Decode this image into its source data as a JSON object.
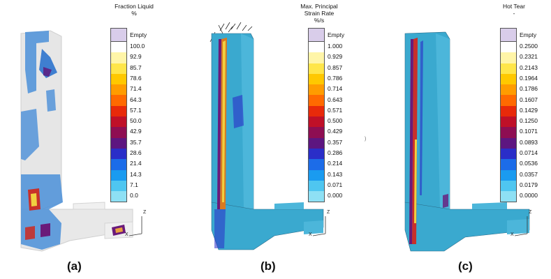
{
  "panels": [
    {
      "id": "a",
      "caption": "(a)",
      "colorbar": {
        "title": "Fraction Liquid\n%",
        "empty_label": "Empty",
        "empty_color": "#d9cdea",
        "ticks": [
          "100.0",
          "92.9",
          "85.7",
          "78.6",
          "71.4",
          "64.3",
          "57.1",
          "50.0",
          "42.9",
          "35.7",
          "28.6",
          "21.4",
          "14.3",
          "7.1",
          "0.0"
        ],
        "colors": [
          "#ffffff",
          "#fff5a8",
          "#ffe64a",
          "#ffc800",
          "#ff9c00",
          "#ff6a00",
          "#e82a0a",
          "#bf1028",
          "#8e0e52",
          "#5d1680",
          "#2a2ec8",
          "#1c6ce8",
          "#1a9bf0",
          "#4fc6f0",
          "#8ee0f4"
        ]
      },
      "axis": {
        "z": "Z",
        "x": "X"
      }
    },
    {
      "id": "b",
      "caption": "(b)",
      "colorbar": {
        "title": "Max. Principal\nStrain Rate\n%/s",
        "empty_label": "Empty",
        "empty_color": "#d9cdea",
        "ticks": [
          "1.000",
          "0.929",
          "0.857",
          "0.786",
          "0.714",
          "0.643",
          "0.571",
          "0.500",
          "0.429",
          "0.357",
          "0.286",
          "0.214",
          "0.143",
          "0.071",
          "0.000"
        ],
        "colors": [
          "#ffffff",
          "#fff5a8",
          "#ffe64a",
          "#ffc800",
          "#ff9c00",
          "#ff6a00",
          "#e82a0a",
          "#bf1028",
          "#8e0e52",
          "#5d1680",
          "#2a2ec8",
          "#1c6ce8",
          "#1a9bf0",
          "#4fc6f0",
          "#8ee0f4"
        ]
      },
      "axis": {
        "z": "Z",
        "x": "X"
      }
    },
    {
      "id": "c",
      "caption": "(c)",
      "colorbar": {
        "title": "Hot Tear\n-",
        "empty_label": "Empty",
        "empty_color": "#d9cdea",
        "ticks": [
          "0.2500",
          "0.2321",
          "0.2143",
          "0.1964",
          "0.1786",
          "0.1607",
          "0.1429",
          "0.1250",
          "0.1071",
          "0.0893",
          "0.0714",
          "0.0536",
          "0.0357",
          "0.0179",
          "0.0000"
        ],
        "colors": [
          "#ffffff",
          "#fff5a8",
          "#ffe64a",
          "#ffc800",
          "#ff9c00",
          "#ff6a00",
          "#e82a0a",
          "#bf1028",
          "#8e0e52",
          "#5d1680",
          "#2a2ec8",
          "#1c6ce8",
          "#1a9bf0",
          "#4fc6f0",
          "#8ee0f4"
        ]
      },
      "axis": {
        "z": "Z",
        "x": "X"
      }
    }
  ],
  "colors": {
    "casting_gray": "#e2e2e2",
    "casting_cyan": "#3aa9cf",
    "liquid_blue": "#4a8fd8",
    "hot_red": "#c8302a",
    "hot_yellow": "#f0d040",
    "hot_purple": "#6a1a7a"
  }
}
